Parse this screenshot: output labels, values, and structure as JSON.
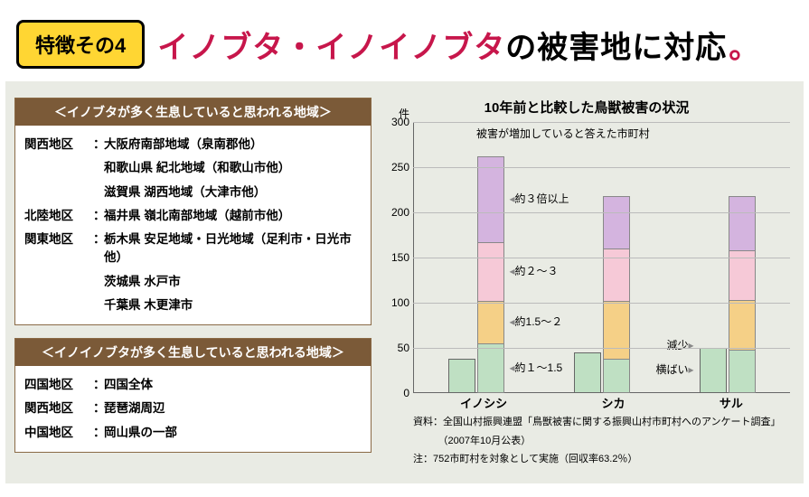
{
  "badge": "特徴その4",
  "headline_red": "イノブタ・イノイノブタ",
  "headline_black": "の被害地に対応",
  "table1": {
    "head": "＜イノブタが多く生息していると思われる地域＞",
    "rows": [
      {
        "region": "関西地区",
        "value": "大阪府南部地域（泉南郡他）"
      },
      {
        "region": "",
        "value": "和歌山県 紀北地域（和歌山市他）"
      },
      {
        "region": "",
        "value": "滋賀県 湖西地域（大津市他）"
      },
      {
        "region": "北陸地区",
        "value": "福井県 嶺北南部地域（越前市他）"
      },
      {
        "region": "関東地区",
        "value": "栃木県 安足地域・日光地域（足利市・日光市他）"
      },
      {
        "region": "",
        "value": "茨城県 水戸市"
      },
      {
        "region": "",
        "value": "千葉県 木更津市"
      }
    ]
  },
  "table2": {
    "head": "＜イノイノブタが多く生息していると思われる地域＞",
    "rows": [
      {
        "region": "四国地区",
        "value": "四国全体"
      },
      {
        "region": "関西地区",
        "value": "琵琶湖周辺"
      },
      {
        "region": "中国地区",
        "value": "岡山県の一部"
      }
    ]
  },
  "chart": {
    "title": "10年前と比較した鳥獣被害の状況",
    "yunit": "件",
    "ymax": 300,
    "ystep": 50,
    "ann_increase": "被害が増加していると答えた市町村",
    "legend": [
      "約３倍以上",
      "約２～３",
      "約1.5～２",
      "約１～1.5"
    ],
    "small_legend": [
      "減少",
      "横ばい"
    ],
    "categories": [
      "イノシシ",
      "シカ",
      "サル"
    ],
    "single_color": "#bfe0c3",
    "stack_colors": [
      "#bfe0c3",
      "#f5d087",
      "#f6c9d7",
      "#d4b4df"
    ],
    "groups": [
      {
        "single": 38,
        "stack": [
          55,
          47,
          65,
          95
        ]
      },
      {
        "single": 45,
        "stack": [
          38,
          64,
          58,
          58
        ]
      },
      {
        "single": 50,
        "stack": [
          48,
          55,
          55,
          60
        ]
      }
    ],
    "source1": "資料：全国山村振興連盟「鳥獣被害に関する振興山村市町村へのアンケート調査」",
    "source2": "　　　（2007年10月公表）",
    "source3": "注：752市町村を対象として実施（回収率63.2％）"
  }
}
